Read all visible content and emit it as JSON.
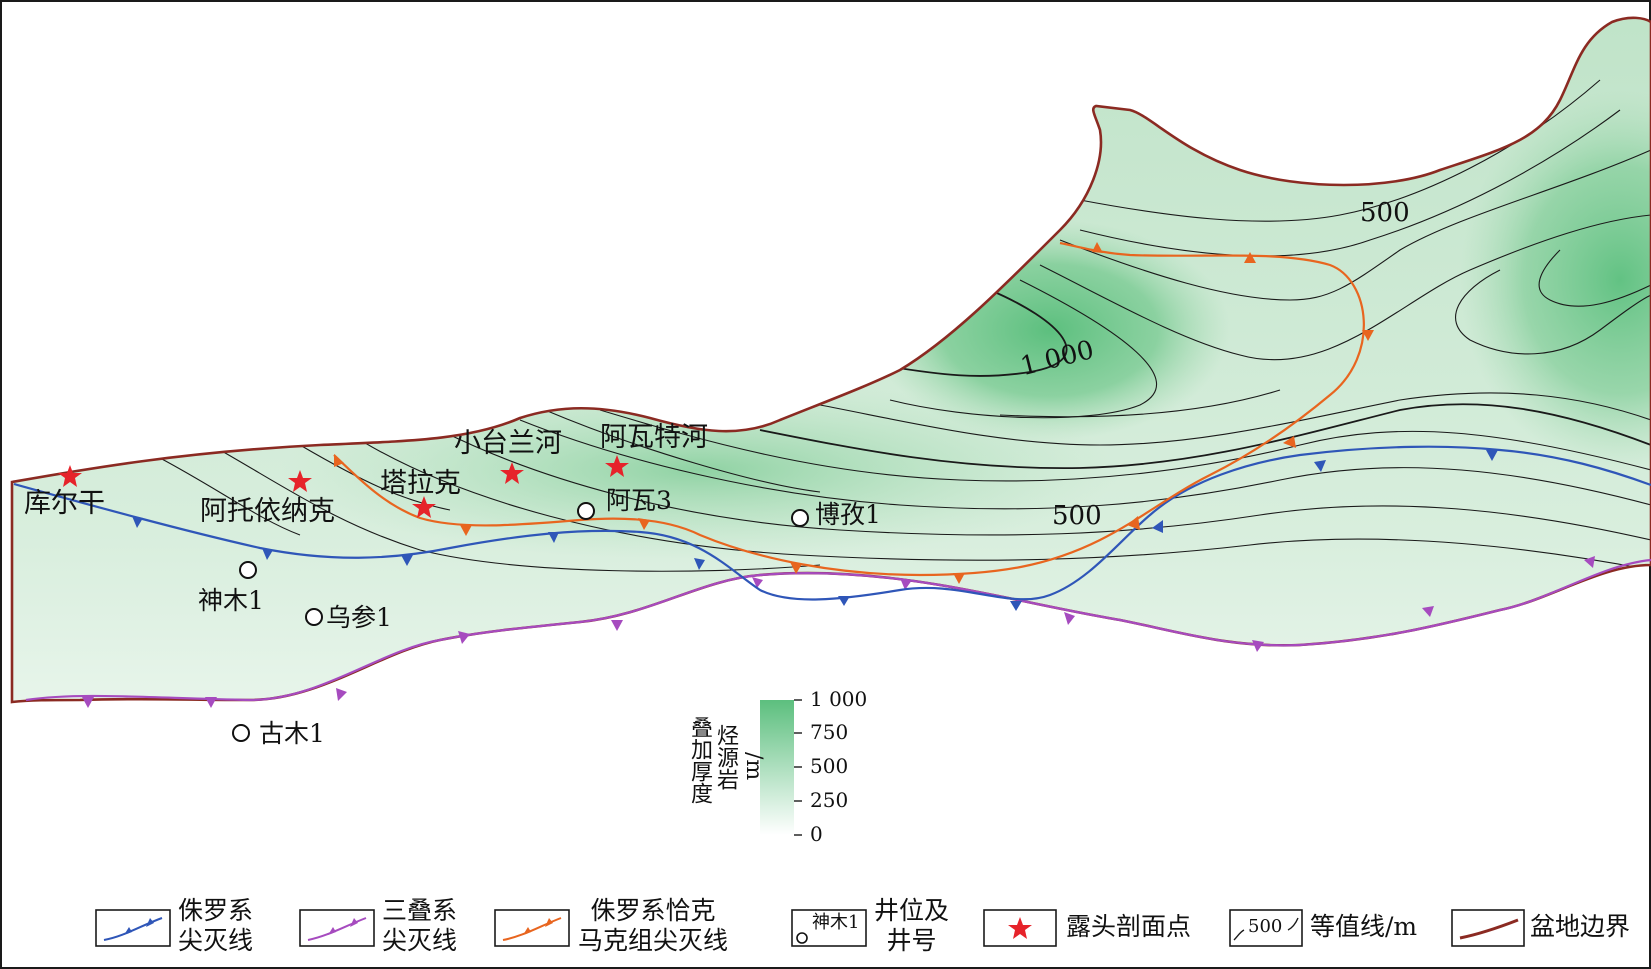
{
  "places": {
    "kuergan": "库尔干",
    "atuoyinake": "阿托依纳克",
    "talake": "塔拉克",
    "xiaotailanhe": "小台兰河",
    "awatehe": "阿瓦特河"
  },
  "wells": {
    "shenmu1": "神木1",
    "wucan1": "乌参1",
    "gumu1": "古木1",
    "awa3": "阿瓦3",
    "bozi1": "博孜1"
  },
  "contour_labels": {
    "c500_top": "500",
    "c1000": "1 000",
    "c500_mid": "500"
  },
  "colorbar": {
    "title_line1": "烃源岩",
    "title_line2": "叠加厚度",
    "unit": "/m",
    "ticks": [
      "1 000",
      "750",
      "500",
      "250",
      "0"
    ],
    "color_max": "#5cbf7e",
    "color_min": "#ffffff"
  },
  "legend": {
    "jurassic_pinchout_l1": "侏罗系",
    "jurassic_pinchout_l2": "尖灭线",
    "triassic_pinchout_l1": "三叠系",
    "triassic_pinchout_l2": "尖灭线",
    "qiakemake_l1": "侏罗系恰克",
    "qiakemake_l2": "马克组尖灭线",
    "well_sample": "神木1",
    "well_l1": "井位及",
    "well_l2": "井号",
    "outcrop": "露头剖面点",
    "contour_sample": "500",
    "contour": "等值线/m",
    "basin_boundary": "盆地边界"
  },
  "colors": {
    "jurassic": "#2f56b8",
    "triassic": "#a64bbf",
    "qiakemake": "#e8651f",
    "boundary": "#8b2a22",
    "outcrop_star": "#e6232a",
    "fill_deep": "#5cbf7e"
  }
}
